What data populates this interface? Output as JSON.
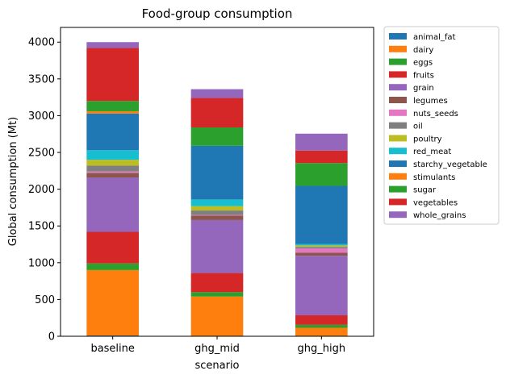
{
  "chart_data": {
    "type": "bar",
    "stacked": true,
    "title": "Food-group consumption",
    "xlabel": "scenario",
    "ylabel": "Global consumption (Mt)",
    "ylim": [
      0,
      4200
    ],
    "yticks": [
      0,
      500,
      1000,
      1500,
      2000,
      2500,
      3000,
      3500,
      4000
    ],
    "categories": [
      "baseline",
      "ghg_mid",
      "ghg_high"
    ],
    "grid": false,
    "legend_position": "outside-right",
    "series": [
      {
        "name": "animal_fat",
        "color": "#1f77b4",
        "values": [
          10,
          5,
          5
        ]
      },
      {
        "name": "dairy",
        "color": "#ff7f0e",
        "values": [
          890,
          535,
          110
        ]
      },
      {
        "name": "eggs",
        "color": "#2ca02c",
        "values": [
          90,
          60,
          40
        ]
      },
      {
        "name": "fruits",
        "color": "#d62728",
        "values": [
          430,
          260,
          130
        ]
      },
      {
        "name": "grain",
        "color": "#9467bd",
        "values": [
          740,
          720,
          810
        ]
      },
      {
        "name": "legumes",
        "color": "#8c564b",
        "values": [
          60,
          60,
          40
        ]
      },
      {
        "name": "nuts_seeds",
        "color": "#e377c2",
        "values": [
          20,
          10,
          60
        ]
      },
      {
        "name": "oil",
        "color": "#7f7f7f",
        "values": [
          80,
          60,
          20
        ]
      },
      {
        "name": "poultry",
        "color": "#bcbd22",
        "values": [
          80,
          60,
          20
        ]
      },
      {
        "name": "red_meat",
        "color": "#17becf",
        "values": [
          130,
          90,
          20
        ]
      },
      {
        "name": "starchy_vegetable",
        "color": "#1f77b4",
        "values": [
          500,
          730,
          790
        ]
      },
      {
        "name": "stimulants",
        "color": "#ff7f0e",
        "values": [
          30,
          0,
          0
        ]
      },
      {
        "name": "sugar",
        "color": "#2ca02c",
        "values": [
          140,
          250,
          310
        ]
      },
      {
        "name": "vegetables",
        "color": "#d62728",
        "values": [
          720,
          400,
          170
        ]
      },
      {
        "name": "whole_grains",
        "color": "#9467bd",
        "values": [
          80,
          120,
          230
        ]
      }
    ]
  }
}
